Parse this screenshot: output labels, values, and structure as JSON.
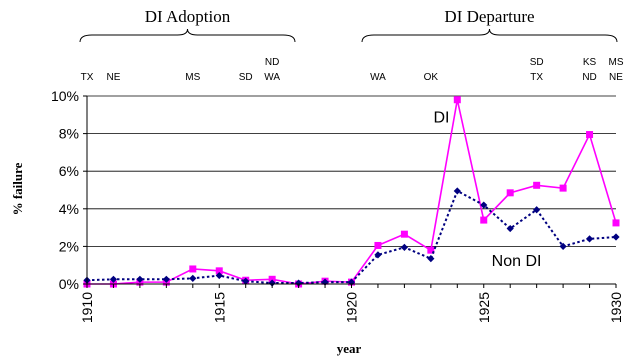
{
  "chart_data": {
    "type": "line",
    "xlabel": "year",
    "ylabel": "% failure",
    "xlim": [
      1910,
      1930
    ],
    "ylim": [
      0,
      10
    ],
    "x_ticks": [
      "1910",
      "1915",
      "1920",
      "1925",
      "1930"
    ],
    "y_ticks": [
      "0%",
      "2%",
      "4%",
      "6%",
      "8%",
      "10%"
    ],
    "grid": "horizontal",
    "x": [
      1910,
      1911,
      1912,
      1913,
      1914,
      1915,
      1916,
      1917,
      1918,
      1919,
      1920,
      1921,
      1922,
      1923,
      1924,
      1925,
      1926,
      1927,
      1928,
      1929,
      1930
    ],
    "series": [
      {
        "name": "DI",
        "color": "#ff00ff",
        "line_style": "solid",
        "marker": "square",
        "values": [
          0.0,
          0.0,
          0.1,
          0.1,
          0.8,
          0.7,
          0.2,
          0.25,
          0.0,
          0.15,
          0.1,
          2.05,
          2.65,
          1.8,
          9.8,
          3.4,
          4.85,
          5.25,
          5.1,
          7.95,
          3.25
        ]
      },
      {
        "name": "Non DI",
        "color": "#000080",
        "line_style": "dotted",
        "marker": "diamond",
        "values": [
          0.2,
          0.25,
          0.25,
          0.25,
          0.3,
          0.45,
          0.15,
          0.05,
          0.05,
          0.1,
          0.1,
          1.55,
          1.95,
          1.35,
          4.95,
          4.2,
          2.95,
          3.95,
          2.0,
          2.4,
          2.5
        ]
      }
    ],
    "brackets": [
      {
        "label": "DI Adoption",
        "from": 1910,
        "to": 1918
      },
      {
        "label": "DI Departure",
        "from": 1920,
        "to": 1930
      }
    ],
    "state_annotations": [
      {
        "year": 1910,
        "lines": [
          "TX"
        ]
      },
      {
        "year": 1911,
        "lines": [
          "NE"
        ]
      },
      {
        "year": 1914,
        "lines": [
          "MS"
        ]
      },
      {
        "year": 1916,
        "lines": [
          "SD"
        ]
      },
      {
        "year": 1917,
        "lines": [
          "ND",
          "WA"
        ]
      },
      {
        "year": 1921,
        "lines": [
          "WA"
        ]
      },
      {
        "year": 1923,
        "lines": [
          "OK"
        ]
      },
      {
        "year": 1927,
        "lines": [
          "SD",
          "TX"
        ]
      },
      {
        "year": 1929,
        "lines": [
          "KS",
          "ND"
        ]
      },
      {
        "year": 1930,
        "lines": [
          "MS",
          "NE"
        ]
      }
    ]
  }
}
